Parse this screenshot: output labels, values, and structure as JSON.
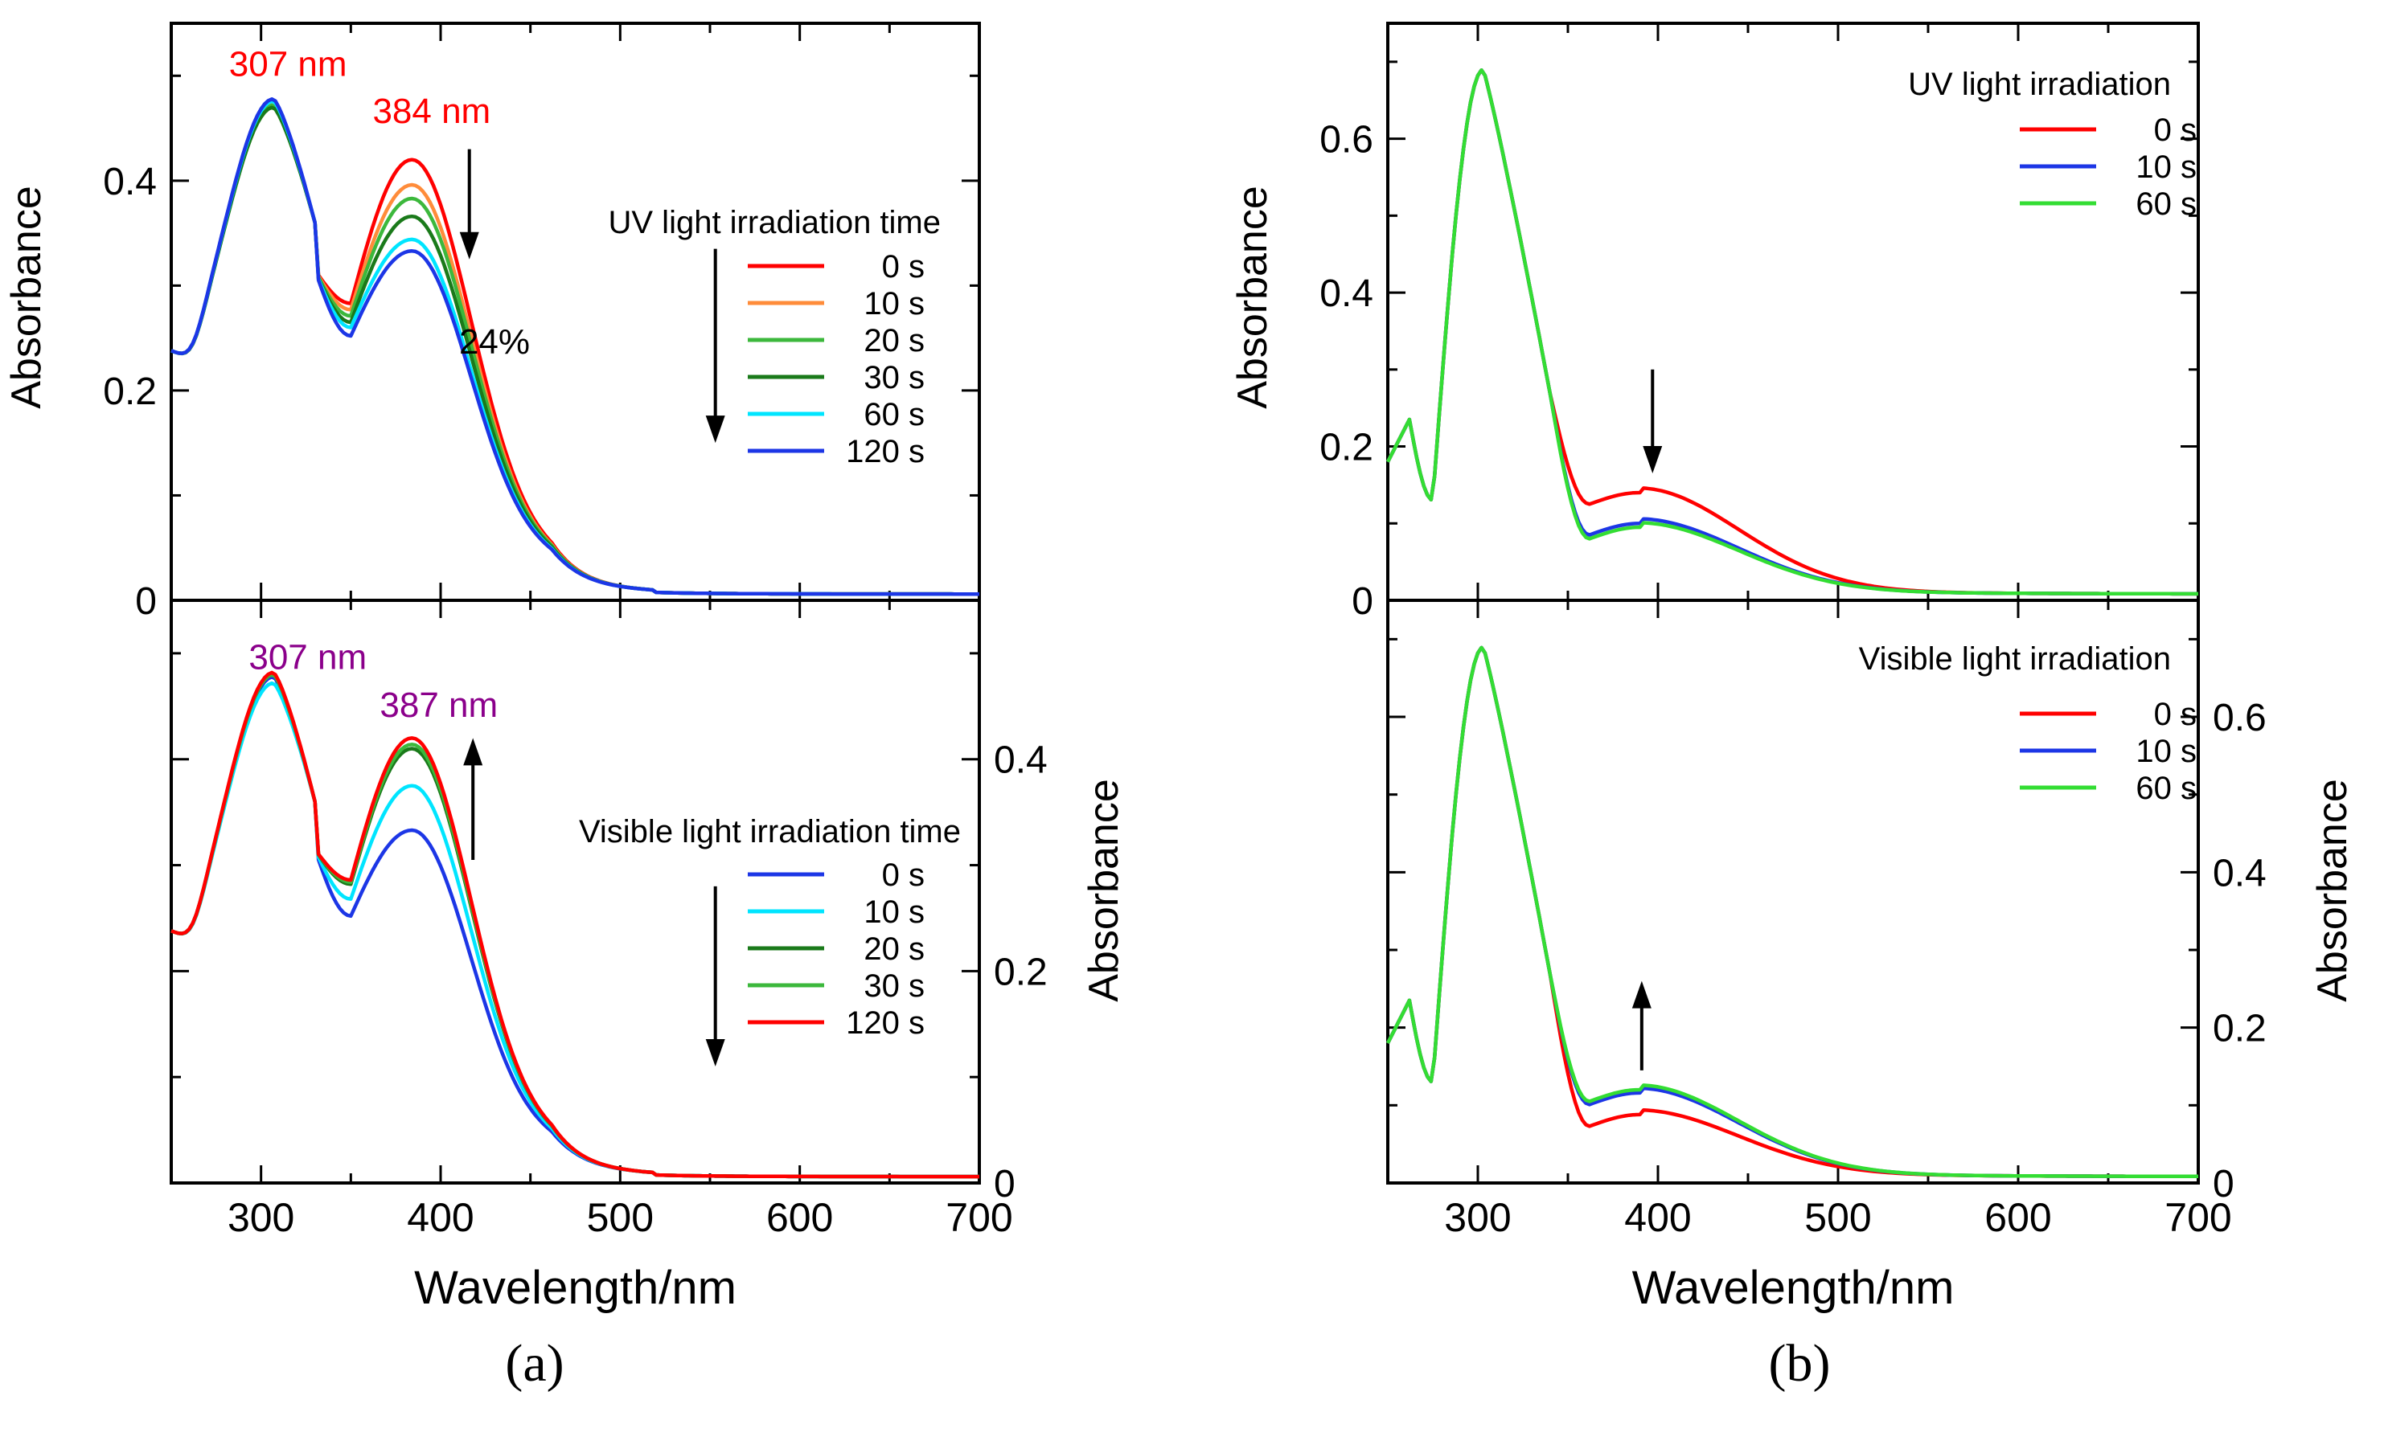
{
  "figure": {
    "label_a": "(a)",
    "label_b": "(b)"
  },
  "chart_data": [
    {
      "id": "a-top",
      "type": "line",
      "xlabel": "",
      "ylabel": "Absorbance",
      "xlim": [
        250,
        700
      ],
      "ylim": [
        0,
        0.55
      ],
      "yticks": [
        0,
        0.2,
        0.4
      ],
      "ytick_labels": [
        "0",
        "0.2",
        "0.4"
      ],
      "xticks": [
        300,
        400,
        500,
        600,
        700
      ],
      "legend_title": "UV light irradiation time",
      "annotations": [
        {
          "text": "307 nm",
          "color": "#ff0000",
          "x": 315,
          "y": 0.5
        },
        {
          "text": "384 nm",
          "color": "#ff0000",
          "x": 395,
          "y": 0.455
        },
        {
          "text": "24%",
          "color": "#000000",
          "x": 430,
          "y": 0.235
        }
      ],
      "arrows": [
        {
          "x": 416,
          "y_from": 0.43,
          "y_to": 0.325,
          "dir": "down"
        },
        {
          "x": 553,
          "y_from": 0.335,
          "y_to": 0.15,
          "dir": "down"
        }
      ],
      "series": [
        {
          "name": "0 s",
          "color": "#ff0000",
          "peak1": 0.473,
          "valley": 0.283,
          "peak2": 0.42
        },
        {
          "name": "10 s",
          "color": "#ff8c3a",
          "peak1": 0.473,
          "valley": 0.277,
          "peak2": 0.396
        },
        {
          "name": "20 s",
          "color": "#3cb83c",
          "peak1": 0.472,
          "valley": 0.271,
          "peak2": 0.383
        },
        {
          "name": "30 s",
          "color": "#1a7a1a",
          "peak1": 0.47,
          "valley": 0.265,
          "peak2": 0.366
        },
        {
          "name": "60 s",
          "color": "#00e5ff",
          "peak1": 0.476,
          "valley": 0.26,
          "peak2": 0.344
        },
        {
          "name": "120 s",
          "color": "#1c36e6",
          "peak1": 0.478,
          "valley": 0.252,
          "peak2": 0.333
        }
      ]
    },
    {
      "id": "a-bottom",
      "type": "line",
      "xlabel": "Wavelength/nm",
      "ylabel": "Absorbance",
      "xlim": [
        250,
        700
      ],
      "ylim": [
        0,
        0.55
      ],
      "yticks": [
        0,
        0.2,
        0.4
      ],
      "ytick_labels": [
        "0",
        "0.2",
        "0.4"
      ],
      "xticks": [
        300,
        400,
        500,
        600,
        700
      ],
      "xtick_labels": [
        "300",
        "400",
        "500",
        "600",
        "700"
      ],
      "legend_title": "Visible light irradiation time",
      "annotations": [
        {
          "text": "307 nm",
          "color": "#8b008b",
          "x": 326,
          "y": 0.485
        },
        {
          "text": "387 nm",
          "color": "#8b008b",
          "x": 399,
          "y": 0.44
        },
        {
          "text": "",
          "color": "#000000",
          "x": 0,
          "y": 0
        }
      ],
      "arrows": [
        {
          "x": 418,
          "y_from": 0.305,
          "y_to": 0.42,
          "dir": "up"
        },
        {
          "x": 553,
          "y_from": 0.28,
          "y_to": 0.11,
          "dir": "down"
        }
      ],
      "series": [
        {
          "name": "0 s",
          "color": "#1c36e6",
          "peak1": 0.478,
          "valley": 0.252,
          "peak2": 0.333
        },
        {
          "name": "10 s",
          "color": "#00e5ff",
          "peak1": 0.472,
          "valley": 0.268,
          "peak2": 0.375
        },
        {
          "name": "20 s",
          "color": "#1a7a1a",
          "peak1": 0.48,
          "valley": 0.282,
          "peak2": 0.41
        },
        {
          "name": "30 s",
          "color": "#3cb83c",
          "peak1": 0.48,
          "valley": 0.284,
          "peak2": 0.414
        },
        {
          "name": "120 s",
          "color": "#ff0000",
          "peak1": 0.482,
          "valley": 0.286,
          "peak2": 0.42
        }
      ]
    },
    {
      "id": "b-top",
      "type": "line",
      "xlabel": "",
      "ylabel": "Absorbance",
      "xlim": [
        250,
        700
      ],
      "ylim": [
        0,
        0.75
      ],
      "yticks": [
        0,
        0.2,
        0.4,
        0.6
      ],
      "ytick_labels": [
        "0",
        "0.2",
        "0.4",
        "0.6"
      ],
      "xticks": [
        300,
        400,
        500,
        600,
        700
      ],
      "legend_title": "UV light irradiation",
      "arrows": [
        {
          "x": 397,
          "y_from": 0.3,
          "y_to": 0.165,
          "dir": "down"
        }
      ],
      "series": [
        {
          "name": "0 s",
          "color": "#ff0000",
          "shoulder": 0.14
        },
        {
          "name": "10 s",
          "color": "#1c36e6",
          "shoulder": 0.1
        },
        {
          "name": "60 s",
          "color": "#33dd33",
          "shoulder": 0.095
        }
      ]
    },
    {
      "id": "b-bottom",
      "type": "line",
      "xlabel": "Wavelength/nm",
      "ylabel": "Absorbance",
      "xlim": [
        250,
        700
      ],
      "ylim": [
        0,
        0.75
      ],
      "yticks": [
        0,
        0.2,
        0.4,
        0.6
      ],
      "ytick_labels": [
        "0",
        "0.2",
        "0.4",
        "0.6"
      ],
      "xticks": [
        300,
        400,
        500,
        600,
        700
      ],
      "xtick_labels": [
        "300",
        "400",
        "500",
        "600",
        "700"
      ],
      "legend_title": "Visible light irradiation",
      "arrows": [
        {
          "x": 391,
          "y_from": 0.145,
          "y_to": 0.26,
          "dir": "up"
        }
      ],
      "series": [
        {
          "name": "0 s",
          "color": "#ff0000",
          "shoulder": 0.088
        },
        {
          "name": "10 s",
          "color": "#1c36e6",
          "shoulder": 0.116
        },
        {
          "name": "60 s",
          "color": "#33dd33",
          "shoulder": 0.12
        }
      ]
    }
  ]
}
